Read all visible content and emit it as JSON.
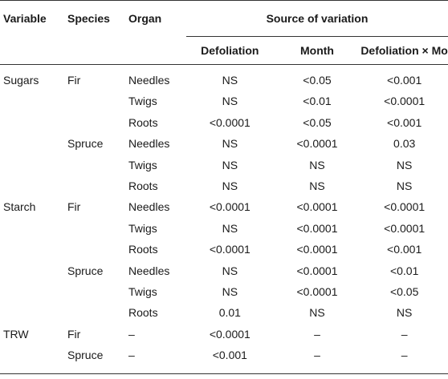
{
  "header": {
    "variable": "Variable",
    "species": "Species",
    "organ": "Organ",
    "source": "Source of variation",
    "defoliation": "Defoliation",
    "month": "Month",
    "interaction": "Defoliation × Month"
  },
  "rows": [
    {
      "variable": "Sugars",
      "species": "Fir",
      "organ": "Needles",
      "defoliation": "NS",
      "month": "<0.05",
      "interaction": "<0.001"
    },
    {
      "variable": "",
      "species": "",
      "organ": "Twigs",
      "defoliation": "NS",
      "month": "<0.01",
      "interaction": "<0.0001"
    },
    {
      "variable": "",
      "species": "",
      "organ": "Roots",
      "defoliation": "<0.0001",
      "month": "<0.05",
      "interaction": "<0.001"
    },
    {
      "variable": "",
      "species": "Spruce",
      "organ": "Needles",
      "defoliation": "NS",
      "month": "<0.0001",
      "interaction": "0.03"
    },
    {
      "variable": "",
      "species": "",
      "organ": "Twigs",
      "defoliation": "NS",
      "month": "NS",
      "interaction": "NS"
    },
    {
      "variable": "",
      "species": "",
      "organ": "Roots",
      "defoliation": "NS",
      "month": "NS",
      "interaction": "NS"
    },
    {
      "variable": "Starch",
      "species": "Fir",
      "organ": "Needles",
      "defoliation": "<0.0001",
      "month": "<0.0001",
      "interaction": "<0.0001"
    },
    {
      "variable": "",
      "species": "",
      "organ": "Twigs",
      "defoliation": "NS",
      "month": "<0.0001",
      "interaction": "<0.0001"
    },
    {
      "variable": "",
      "species": "",
      "organ": "Roots",
      "defoliation": "<0.0001",
      "month": "<0.0001",
      "interaction": "<0.001"
    },
    {
      "variable": "",
      "species": "Spruce",
      "organ": "Needles",
      "defoliation": "NS",
      "month": "<0.0001",
      "interaction": "<0.01"
    },
    {
      "variable": "",
      "species": "",
      "organ": "Twigs",
      "defoliation": "NS",
      "month": "<0.0001",
      "interaction": "<0.05"
    },
    {
      "variable": "",
      "species": "",
      "organ": "Roots",
      "defoliation": "0.01",
      "month": "NS",
      "interaction": "NS"
    },
    {
      "variable": "TRW",
      "species": "Fir",
      "organ": "–",
      "defoliation": "<0.0001",
      "month": "–",
      "interaction": "–"
    },
    {
      "variable": "",
      "species": "Spruce",
      "organ": "–",
      "defoliation": "<0.001",
      "month": "–",
      "interaction": "–"
    }
  ]
}
